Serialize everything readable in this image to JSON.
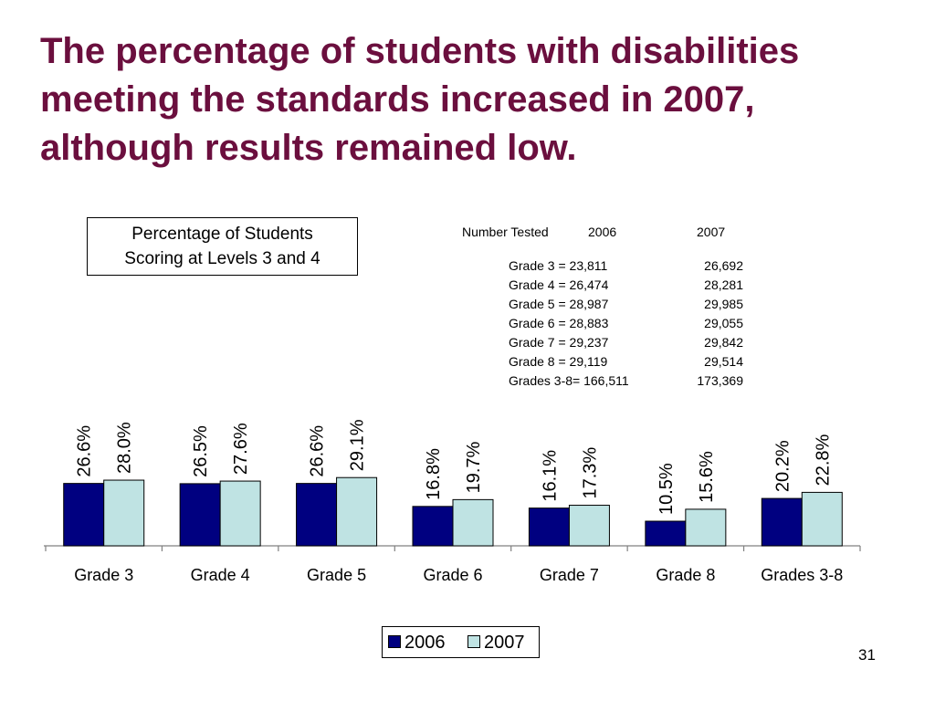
{
  "slide": {
    "title": "The percentage of students with disabilities meeting the standards increased in 2007, although results remained low.",
    "page_number": "31"
  },
  "chart_data": {
    "type": "bar",
    "title": [
      "Percentage of Students",
      "Scoring at Levels 3 and 4"
    ],
    "categories": [
      "Grade 3",
      "Grade 4",
      "Grade 5",
      "Grade 6",
      "Grade 7",
      "Grade 8",
      "Grades 3-8"
    ],
    "series": [
      {
        "name": "2006",
        "values": [
          26.6,
          26.5,
          26.6,
          16.8,
          16.1,
          10.5,
          20.2
        ],
        "labels": [
          "26.6%",
          "26.5%",
          "26.6%",
          "16.8%",
          "16.1%",
          "10.5%",
          "20.2%"
        ],
        "color": "#000080"
      },
      {
        "name": "2007",
        "values": [
          28.0,
          27.6,
          29.1,
          19.7,
          17.3,
          15.6,
          22.8
        ],
        "labels": [
          "28.0%",
          "27.6%",
          "29.1%",
          "19.7%",
          "17.3%",
          "15.6%",
          "22.8%"
        ],
        "color": "#bfe3e3"
      }
    ],
    "ylim": [
      0,
      100
    ],
    "grid": false,
    "legend_position": "bottom"
  },
  "number_tested": {
    "header": {
      "label": "Number Tested",
      "col_2006": "2006",
      "col_2007": "2007"
    },
    "rows": [
      {
        "grade": "Grade 3 = 23,811",
        "v2007": "26,692"
      },
      {
        "grade": "Grade 4 = 26,474",
        "v2007": "28,281"
      },
      {
        "grade": "Grade 5 = 28,987",
        "v2007": "29,985"
      },
      {
        "grade": "Grade 6 = 28,883",
        "v2007": "29,055"
      },
      {
        "grade": "Grade 7 = 29,237",
        "v2007": "29,842"
      },
      {
        "grade": "Grade 8 = 29,119",
        "v2007": "29,514"
      },
      {
        "grade": "Grades 3-8= 166,511",
        "v2007": "173,369"
      }
    ]
  }
}
